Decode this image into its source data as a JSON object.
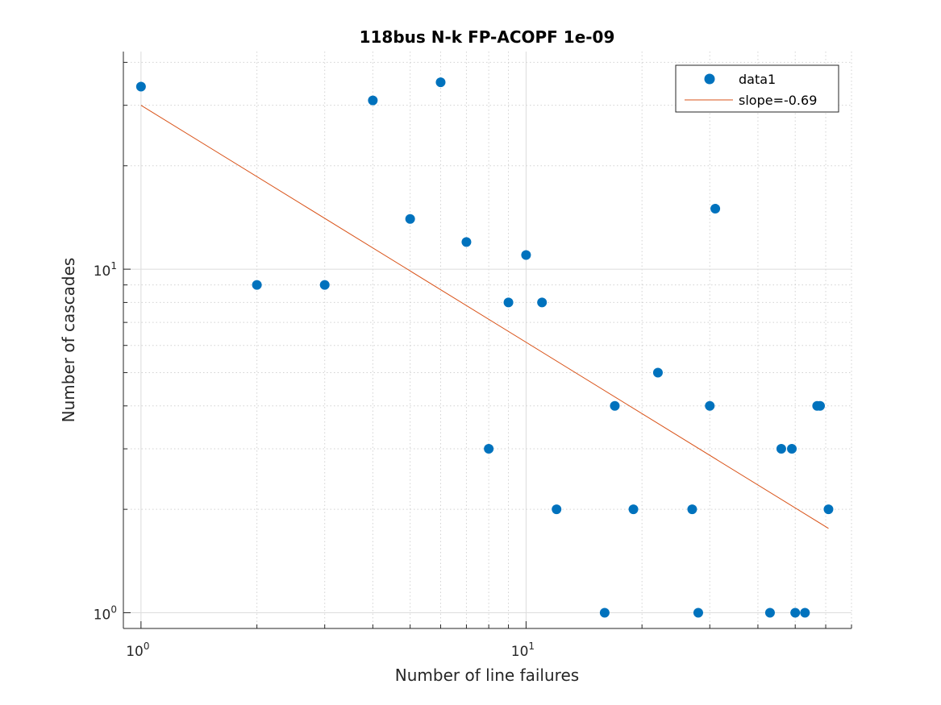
{
  "chart_data": {
    "type": "scatter",
    "title": "118bus N-k FP-ACOPF 1e-09",
    "xlabel": "Number of line failures",
    "ylabel": "Number of cascades",
    "xscale": "log",
    "yscale": "log",
    "xlim": [
      0.9,
      70
    ],
    "ylim": [
      0.9,
      43
    ],
    "grid": true,
    "legend_position": "top-right",
    "x_ticks": [
      {
        "value": 1,
        "base": "10",
        "exp": "0"
      },
      {
        "value": 10,
        "base": "10",
        "exp": "1"
      }
    ],
    "y_ticks": [
      {
        "value": 1,
        "base": "10",
        "exp": "0"
      },
      {
        "value": 10,
        "base": "10",
        "exp": "1"
      }
    ],
    "series": [
      {
        "name": "data1",
        "kind": "markers",
        "color": "#0072BD",
        "points": [
          {
            "x": 1,
            "y": 34
          },
          {
            "x": 2,
            "y": 9
          },
          {
            "x": 3,
            "y": 9
          },
          {
            "x": 4,
            "y": 31
          },
          {
            "x": 5,
            "y": 14
          },
          {
            "x": 6,
            "y": 35
          },
          {
            "x": 7,
            "y": 12
          },
          {
            "x": 8,
            "y": 3
          },
          {
            "x": 9,
            "y": 8
          },
          {
            "x": 10,
            "y": 11
          },
          {
            "x": 11,
            "y": 8
          },
          {
            "x": 12,
            "y": 2
          },
          {
            "x": 16,
            "y": 1
          },
          {
            "x": 17,
            "y": 4
          },
          {
            "x": 19,
            "y": 2
          },
          {
            "x": 22,
            "y": 5
          },
          {
            "x": 27,
            "y": 2
          },
          {
            "x": 28,
            "y": 1
          },
          {
            "x": 30,
            "y": 4
          },
          {
            "x": 31,
            "y": 15
          },
          {
            "x": 43,
            "y": 1
          },
          {
            "x": 46,
            "y": 3
          },
          {
            "x": 49,
            "y": 3
          },
          {
            "x": 50,
            "y": 1
          },
          {
            "x": 53,
            "y": 1
          },
          {
            "x": 57,
            "y": 4
          },
          {
            "x": 58,
            "y": 4
          },
          {
            "x": 61,
            "y": 2
          }
        ]
      },
      {
        "name": "slope=-0.69",
        "kind": "line",
        "color": "#D95319",
        "points": [
          {
            "x": 1,
            "y": 30
          },
          {
            "x": 61,
            "y": 1.76
          }
        ]
      }
    ]
  }
}
